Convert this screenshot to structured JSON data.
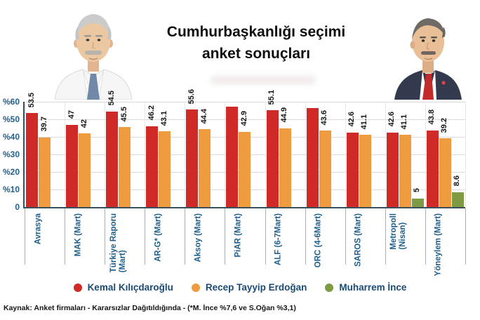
{
  "title": {
    "line1": "Cumhurbaşkanlığı seçimi",
    "line2": "anket sonuçları"
  },
  "portraits": {
    "left": "kilicdaroglu-photo",
    "right": "erdogan-photo"
  },
  "colors": {
    "kilicdaroglu_red": "#cf2a27",
    "erdogan_orange": "#ef9b3f",
    "ince_green": "#7e9b43",
    "axis_text_blue": "#22618c",
    "category_text_blue": "#21608d",
    "legend_text_blue": "#1b4a72",
    "axis_line": "#39505f",
    "gridline": "#dadada"
  },
  "chart_data": {
    "type": "bar",
    "title": "Cumhurbaşkanlığı seçimi anket sonuçları",
    "xlabel": "",
    "ylabel": "",
    "ylim": [
      0,
      60
    ],
    "grid": true,
    "legend_position": "bottom",
    "y_axis": {
      "tick_values": [
        60,
        50,
        40,
        30,
        20,
        10,
        0
      ],
      "tick_labels": [
        "%60",
        "%50",
        "%40",
        "%30",
        "%20",
        "%10",
        "0"
      ]
    },
    "categories": [
      "Avrasya",
      "MAK (Mart)",
      "Türkiye Raporu (Mart)",
      "AR-G* (Mart)",
      "Aksoy (Mart)",
      "PiAR (Mart)",
      "ALF (6-7Mart)",
      "ORC (4-6Mart)",
      "SAROS (Mart)",
      "Metropoll (Nisan)",
      "Yöneylem (Mart)"
    ],
    "category_lines": [
      [
        "Avrasya"
      ],
      [
        "MAK (Mart)"
      ],
      [
        "Türkiye Raporu",
        "(Mart)"
      ],
      [
        "AR-G* (Mart)"
      ],
      [
        "Aksoy (Mart)"
      ],
      [
        "PiAR (Mart)"
      ],
      [
        "ALF (6-7Mart)"
      ],
      [
        "ORC (4-6Mart)"
      ],
      [
        "SAROS (Mart)"
      ],
      [
        "Metropoll",
        "(Nisan)"
      ],
      [
        "Yöneylem (Mart)"
      ]
    ],
    "series": [
      {
        "name": "Kemal Kılıçdaroğlu",
        "color": "#cf2a27",
        "values": [
          53.5,
          47,
          54.5,
          46.2,
          55.6,
          57.1,
          55.1,
          56.4,
          42.6,
          42.6,
          43.8
        ],
        "labels": [
          "53.5",
          "47",
          "54.5",
          "46.2",
          "55.6",
          "",
          "55.1",
          "",
          "42.6",
          "42.6",
          "43.8"
        ]
      },
      {
        "name": "Recep Tayyip Erdoğan",
        "color": "#ef9b3f",
        "values": [
          39.7,
          42,
          45.5,
          43.1,
          44.4,
          42.9,
          44.9,
          43.6,
          41.1,
          41.1,
          39.2
        ],
        "labels": [
          "39.7",
          "42",
          "45.5",
          "43.1",
          "44.4",
          "42.9",
          "44.9",
          "43.6",
          "41.1",
          "41.1",
          "39.2"
        ]
      },
      {
        "name": "Muharrem İnce",
        "color": "#7e9b43",
        "values": [
          null,
          null,
          null,
          null,
          null,
          null,
          null,
          null,
          null,
          5,
          8.6
        ],
        "labels": [
          "",
          "",
          "",
          "",
          "",
          "",
          "",
          "",
          "",
          "5",
          "8.6"
        ]
      }
    ]
  },
  "legend": [
    {
      "label": "Kemal Kılıçdaroğlu",
      "color": "#cf2a27"
    },
    {
      "label": "Recep Tayyip Erdoğan",
      "color": "#ef9b3f"
    },
    {
      "label": "Muharrem İnce",
      "color": "#7e9b43"
    }
  ],
  "source_note": "Kaynak: Anket firmaları - Kararsızlar Dağıtıldığında - (*M. İnce %7,6 ve S.Oğan %3,1)"
}
